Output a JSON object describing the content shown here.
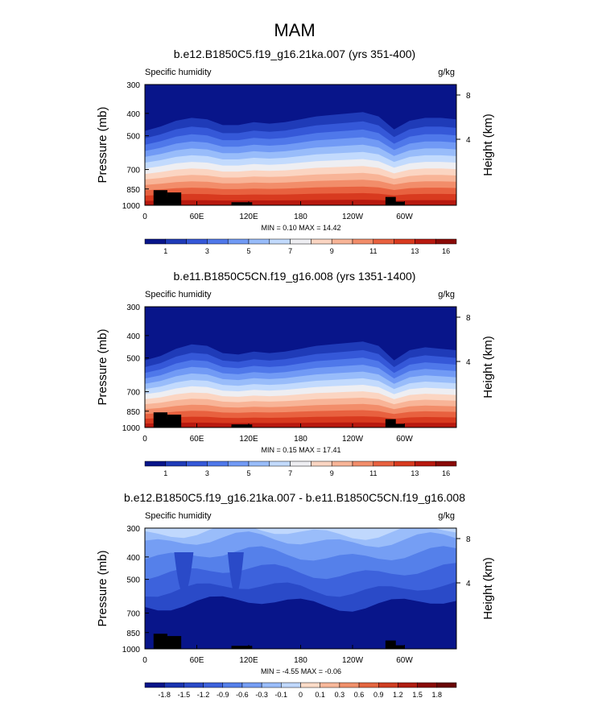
{
  "page_title": "MAM",
  "chart_data": [
    {
      "type": "heatmap",
      "title": "b.e12.B1850C5.f19_g16.21ka.007 (yrs 351-400)",
      "variable_label": "Specific humidity",
      "units": "g/kg",
      "ylabel": "Pressure (mb)",
      "ylabel_right": "Height (km)",
      "x_ticks": [
        "0",
        "60E",
        "120E",
        "180",
        "120W",
        "60W"
      ],
      "y_ticks": [
        "300",
        "400",
        "500",
        "700",
        "850",
        "1000"
      ],
      "y_ticks_right": [
        "8",
        "4"
      ],
      "stats_text": "MIN =   0.10   MAX =  14.42",
      "colorbar_labels": [
        "1",
        "3",
        "5",
        "7",
        "9",
        "11",
        "13",
        "16"
      ],
      "level_profile": [
        6.4,
        5.8,
        5.0,
        4.6,
        4.8,
        5.6,
        5.6,
        5.2,
        5.4,
        5.2,
        4.8,
        4.4,
        4.2,
        4.0,
        3.8,
        4.4,
        6.2,
        5.0,
        4.6,
        4.6,
        4.8
      ]
    },
    {
      "type": "heatmap",
      "title": "b.e11.B1850C5CN.f19_g16.008 (yrs 1351-1400)",
      "variable_label": "Specific humidity",
      "units": "g/kg",
      "ylabel": "Pressure (mb)",
      "ylabel_right": "Height (km)",
      "x_ticks": [
        "0",
        "60E",
        "120E",
        "180",
        "120W",
        "60W"
      ],
      "y_ticks": [
        "300",
        "400",
        "500",
        "700",
        "850",
        "1000"
      ],
      "y_ticks_right": [
        "8",
        "4"
      ],
      "stats_text": "MIN =   0.15   MAX =  17.41",
      "colorbar_labels": [
        "1",
        "3",
        "5",
        "7",
        "9",
        "11",
        "13",
        "16"
      ],
      "level_profile": [
        7.4,
        6.8,
        5.8,
        5.2,
        5.4,
        6.4,
        6.6,
        6.2,
        6.4,
        6.2,
        5.8,
        5.4,
        5.2,
        5.0,
        4.8,
        5.4,
        7.4,
        6.0,
        5.6,
        5.8,
        6.0
      ]
    },
    {
      "type": "heatmap",
      "title": "b.e12.B1850C5.f19_g16.21ka.007 - b.e11.B1850C5CN.f19_g16.008",
      "variable_label": "Specific humidity",
      "units": "g/kg",
      "ylabel": "Pressure (mb)",
      "ylabel_right": "Height (km)",
      "x_ticks": [
        "0",
        "60E",
        "120E",
        "180",
        "120W",
        "60W"
      ],
      "y_ticks": [
        "300",
        "400",
        "500",
        "700",
        "850",
        "1000"
      ],
      "y_ticks_right": [
        "8",
        "4"
      ],
      "stats_text": "MIN =  -4.55   MAX =  -0.06",
      "colorbar_labels": [
        "-1.8",
        "-1.5",
        "-1.2",
        "-0.9",
        "-0.6",
        "-0.3",
        "-0.1",
        "0",
        "0.1",
        "0.3",
        "0.6",
        "0.9",
        "1.2",
        "1.5",
        "1.8"
      ]
    }
  ],
  "palette_seq": [
    "#08158a",
    "#1f3bb8",
    "#3558d8",
    "#4f78ea",
    "#719af5",
    "#98bcfa",
    "#c2dafd",
    "#eeeef2",
    "#fbd5c2",
    "#f8b497",
    "#f28d6a",
    "#e8613f",
    "#d83a1f",
    "#b8190f",
    "#8a0a07"
  ],
  "palette_div": [
    "#08158a",
    "#1a34b0",
    "#2a4ac8",
    "#3d62dc",
    "#5580ea",
    "#759ef4",
    "#9abdfa",
    "#c0d8fd",
    "#fcdcc8",
    "#f8b89a",
    "#f0906a",
    "#e46640",
    "#cf3e22",
    "#b01e12",
    "#8a0a07",
    "#6a0505"
  ]
}
